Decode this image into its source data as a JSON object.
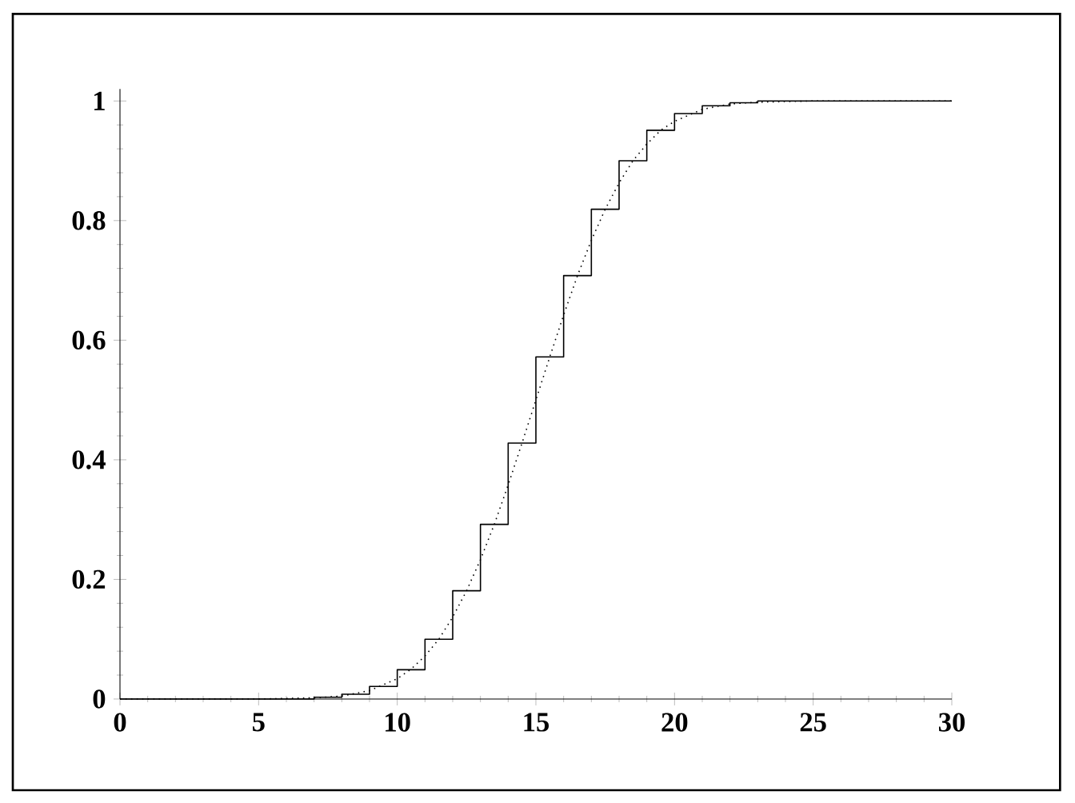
{
  "chart_data": {
    "type": "line",
    "xlim": [
      0,
      30
    ],
    "ylim": [
      0,
      1.02
    ],
    "xticks": [
      0,
      5,
      10,
      15,
      20,
      25,
      30
    ],
    "yticks": [
      0,
      0.2,
      0.4,
      0.6,
      0.8,
      1
    ],
    "marker": "none",
    "series": [
      {
        "type": "step",
        "color": "#000000",
        "line_style": "solid",
        "x": [
          0,
          1,
          2,
          3,
          4,
          5,
          6,
          7,
          8,
          9,
          10,
          11,
          12,
          13,
          14,
          15,
          16,
          17,
          18,
          19,
          20,
          21,
          22,
          23,
          24,
          25,
          26,
          27,
          28,
          29,
          30
        ],
        "values": [
          0,
          0,
          0,
          0,
          0,
          0,
          0,
          0.003,
          0.008,
          0.021,
          0.049,
          0.1,
          0.181,
          0.292,
          0.428,
          0.572,
          0.708,
          0.819,
          0.9,
          0.951,
          0.979,
          0.992,
          0.997,
          1,
          1,
          1,
          1,
          1,
          1,
          1,
          1
        ]
      },
      {
        "type": "line",
        "color": "#000000",
        "line_style": "dotted",
        "x": [
          0,
          5,
          7,
          8,
          9,
          10,
          10.5,
          11,
          11.5,
          12,
          12.5,
          13,
          13.5,
          14,
          14.5,
          15,
          15.5,
          16,
          16.5,
          17,
          17.5,
          18,
          18.5,
          19,
          19.5,
          20,
          21,
          22,
          23,
          25,
          30
        ],
        "values": [
          0,
          0,
          0.002,
          0.005,
          0.014,
          0.034,
          0.05,
          0.072,
          0.1,
          0.137,
          0.181,
          0.233,
          0.292,
          0.358,
          0.428,
          0.5,
          0.572,
          0.642,
          0.708,
          0.767,
          0.819,
          0.863,
          0.9,
          0.928,
          0.951,
          0.966,
          0.986,
          0.995,
          0.998,
          1,
          1
        ]
      }
    ]
  }
}
